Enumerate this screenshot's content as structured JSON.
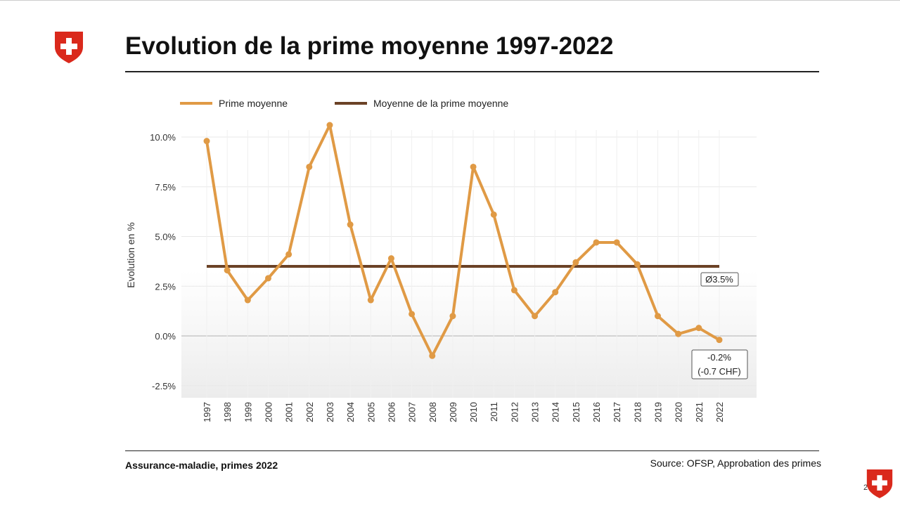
{
  "slide": {
    "title": "Evolution de la prime moyenne 1997-2022",
    "footer_left": "Assurance-maladie, primes 2022",
    "footer_right": "Source: OFSP, Approbation des primes",
    "page_number": "2",
    "logo": "swiss-cross-shield"
  },
  "chart_data": {
    "type": "line",
    "title": "",
    "xlabel": "",
    "ylabel": "Evolution en %",
    "x": [
      1997,
      1998,
      1999,
      2000,
      2001,
      2002,
      2003,
      2004,
      2005,
      2006,
      2007,
      2008,
      2009,
      2010,
      2011,
      2012,
      2013,
      2014,
      2015,
      2016,
      2017,
      2018,
      2019,
      2020,
      2021,
      2022
    ],
    "series": [
      {
        "name": "Prime moyenne",
        "color": "#E09A45",
        "values": [
          9.8,
          3.3,
          1.8,
          2.9,
          4.1,
          8.5,
          10.6,
          5.6,
          1.8,
          3.9,
          1.1,
          -1.0,
          1.0,
          8.5,
          6.1,
          2.3,
          1.0,
          2.2,
          3.7,
          4.7,
          4.7,
          3.6,
          1.0,
          0.1,
          0.4,
          -0.2
        ]
      },
      {
        "name": "Moyenne de la prime moyenne",
        "color": "#6B4226",
        "values_constant": 3.5
      }
    ],
    "yticks": [
      "-2.5%",
      "0.0%",
      "2.5%",
      "5.0%",
      "7.5%",
      "10.0%"
    ],
    "ytick_values": [
      -2.5,
      0,
      2.5,
      5,
      7.5,
      10
    ],
    "ylim": [
      -3.1,
      10.9
    ],
    "grid": true,
    "legend": "top-left",
    "annotations": [
      {
        "label": "Ø3.5%"
      },
      {
        "label_line1": "-0.2%",
        "label_line2": "(-0.7 CHF)"
      }
    ]
  }
}
